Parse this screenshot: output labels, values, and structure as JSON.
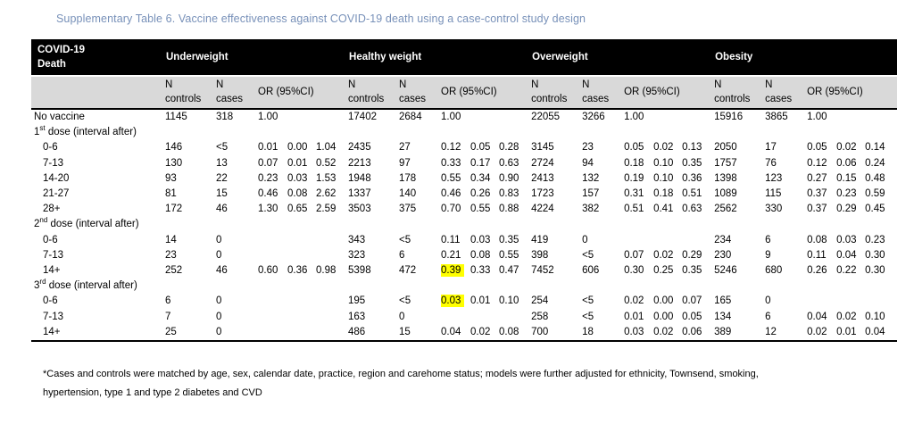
{
  "title": "Supplementary Table 6. Vaccine effectiveness against COVID-19 death using a case-control study design",
  "colors": {
    "title_text": "#7891B9",
    "header_bg": "#000000",
    "header_text": "#FFFFFF",
    "subheader_bg": "#D9D9D9",
    "highlight": "#FFFF00"
  },
  "table": {
    "corner_header_lines": [
      "COVID-19",
      "Death"
    ],
    "groups": [
      "Underweight",
      "Healthy weight",
      "Overweight",
      "Obesity"
    ],
    "sub_headers": {
      "n_controls_lines": [
        "N",
        "controls"
      ],
      "n_cases_lines": [
        "N",
        "cases"
      ],
      "or_header": "OR (95%CI)"
    },
    "rows": [
      {
        "type": "data",
        "label": "No vaccine",
        "indent": false,
        "cells": [
          [
            "1145",
            "318",
            "1.00",
            "",
            ""
          ],
          [
            "17402",
            "2684",
            "1.00",
            "",
            ""
          ],
          [
            "22055",
            "3266",
            "1.00",
            "",
            ""
          ],
          [
            "15916",
            "3865",
            "1.00",
            "",
            ""
          ]
        ]
      },
      {
        "type": "section",
        "num": "1",
        "sup": "st",
        "rest": " dose (interval after)"
      },
      {
        "type": "data",
        "label": "0-6",
        "indent": true,
        "cells": [
          [
            "146",
            "<5",
            "0.01",
            "0.00",
            "1.04"
          ],
          [
            "2435",
            "27",
            "0.12",
            "0.05",
            "0.28"
          ],
          [
            "3145",
            "23",
            "0.05",
            "0.02",
            "0.13"
          ],
          [
            "2050",
            "17",
            "0.05",
            "0.02",
            "0.14"
          ]
        ]
      },
      {
        "type": "data",
        "label": "7-13",
        "indent": true,
        "cells": [
          [
            "130",
            "13",
            "0.07",
            "0.01",
            "0.52"
          ],
          [
            "2213",
            "97",
            "0.33",
            "0.17",
            "0.63"
          ],
          [
            "2724",
            "94",
            "0.18",
            "0.10",
            "0.35"
          ],
          [
            "1757",
            "76",
            "0.12",
            "0.06",
            "0.24"
          ]
        ]
      },
      {
        "type": "data",
        "label": "14-20",
        "indent": true,
        "cells": [
          [
            "93",
            "22",
            "0.23",
            "0.03",
            "1.53"
          ],
          [
            "1948",
            "178",
            "0.55",
            "0.34",
            "0.90"
          ],
          [
            "2413",
            "132",
            "0.19",
            "0.10",
            "0.36"
          ],
          [
            "1398",
            "123",
            "0.27",
            "0.15",
            "0.48"
          ]
        ]
      },
      {
        "type": "data",
        "label": "21-27",
        "indent": true,
        "cells": [
          [
            "81",
            "15",
            "0.46",
            "0.08",
            "2.62"
          ],
          [
            "1337",
            "140",
            "0.46",
            "0.26",
            "0.83"
          ],
          [
            "1723",
            "157",
            "0.31",
            "0.18",
            "0.51"
          ],
          [
            "1089",
            "115",
            "0.37",
            "0.23",
            "0.59"
          ]
        ]
      },
      {
        "type": "data",
        "label": "28+",
        "indent": true,
        "cells": [
          [
            "172",
            "46",
            "1.30",
            "0.65",
            "2.59"
          ],
          [
            "3503",
            "375",
            "0.70",
            "0.55",
            "0.88"
          ],
          [
            "4224",
            "382",
            "0.51",
            "0.41",
            "0.63"
          ],
          [
            "2562",
            "330",
            "0.37",
            "0.29",
            "0.45"
          ]
        ]
      },
      {
        "type": "section",
        "num": "2",
        "sup": "nd",
        "rest": " dose (interval after)"
      },
      {
        "type": "data",
        "label": "0-6",
        "indent": true,
        "cells": [
          [
            "14",
            "0",
            "",
            "",
            ""
          ],
          [
            "343",
            "<5",
            "0.11",
            "0.03",
            "0.35"
          ],
          [
            "419",
            "0",
            "",
            "",
            ""
          ],
          [
            "234",
            "6",
            "0.08",
            "0.03",
            "0.23"
          ]
        ]
      },
      {
        "type": "data",
        "label": "7-13",
        "indent": true,
        "cells": [
          [
            "23",
            "0",
            "",
            "",
            ""
          ],
          [
            "323",
            "6",
            "0.21",
            "0.08",
            "0.55"
          ],
          [
            "398",
            "<5",
            "0.07",
            "0.02",
            "0.29"
          ],
          [
            "230",
            "9",
            "0.11",
            "0.04",
            "0.30"
          ]
        ]
      },
      {
        "type": "data",
        "label": "14+",
        "indent": true,
        "highlights": [
          [
            1,
            2
          ]
        ],
        "cells": [
          [
            "252",
            "46",
            "0.60",
            "0.36",
            "0.98"
          ],
          [
            "5398",
            "472",
            "0.39",
            "0.33",
            "0.47"
          ],
          [
            "7452",
            "606",
            "0.30",
            "0.25",
            "0.35"
          ],
          [
            "5246",
            "680",
            "0.26",
            "0.22",
            "0.30"
          ]
        ]
      },
      {
        "type": "section",
        "num": "3",
        "sup": "rd",
        "rest": " dose (interval after)"
      },
      {
        "type": "data",
        "label": "0-6",
        "indent": true,
        "highlights": [
          [
            1,
            2
          ]
        ],
        "cells": [
          [
            "6",
            "0",
            "",
            "",
            ""
          ],
          [
            "195",
            "<5",
            "0.03",
            "0.01",
            "0.10"
          ],
          [
            "254",
            "<5",
            "0.02",
            "0.00",
            "0.07"
          ],
          [
            "165",
            "0",
            "",
            "",
            ""
          ]
        ]
      },
      {
        "type": "data",
        "label": "7-13",
        "indent": true,
        "cells": [
          [
            "7",
            "0",
            "",
            "",
            ""
          ],
          [
            "163",
            "0",
            "",
            "",
            ""
          ],
          [
            "258",
            "<5",
            "0.01",
            "0.00",
            "0.05"
          ],
          [
            "134",
            "6",
            "0.04",
            "0.02",
            "0.10"
          ]
        ]
      },
      {
        "type": "data",
        "label": "14+",
        "indent": true,
        "cells": [
          [
            "25",
            "0",
            "",
            "",
            ""
          ],
          [
            "486",
            "15",
            "0.04",
            "0.02",
            "0.08"
          ],
          [
            "700",
            "18",
            "0.03",
            "0.02",
            "0.06"
          ],
          [
            "389",
            "12",
            "0.02",
            "0.01",
            "0.04"
          ]
        ]
      }
    ]
  },
  "footnote": {
    "line1": "*Cases and controls were matched by age, sex, calendar date, practice, region and carehome status; models were further adjusted for ethnicity, Townsend, smoking,",
    "line2": "hypertension, type 1 and type 2 diabetes and CVD"
  }
}
